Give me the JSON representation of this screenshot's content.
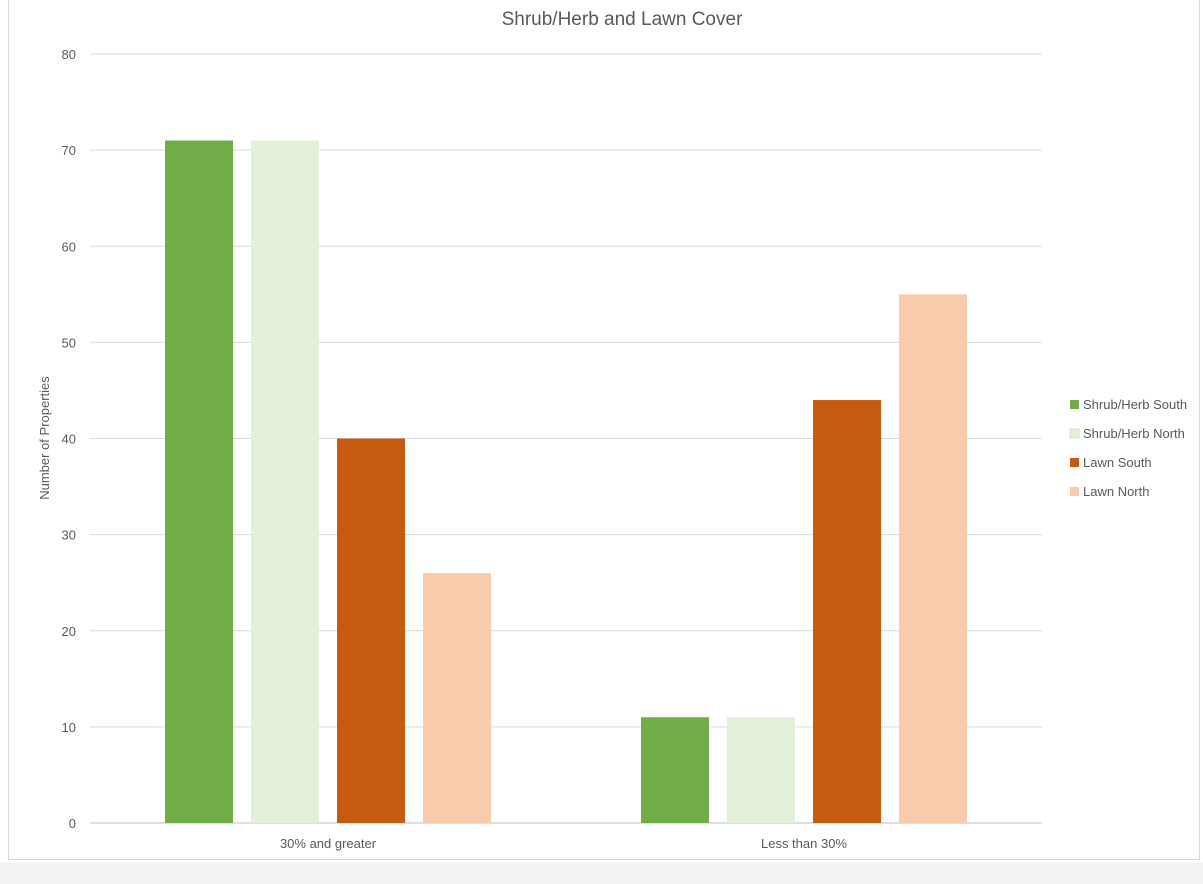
{
  "chart_data": {
    "type": "bar",
    "title": "Shrub/Herb and Lawn Cover",
    "xlabel": "",
    "ylabel": "Number  of Properties",
    "categories": [
      "30% and greater",
      "Less than 30%"
    ],
    "series": [
      {
        "name": "Shrub/Herb South",
        "color": "#70ad47",
        "values": [
          71,
          11
        ]
      },
      {
        "name": "Shrub/Herb North",
        "color": "#e2efd9",
        "values": [
          71,
          11
        ]
      },
      {
        "name": "Lawn South",
        "color": "#c55a11",
        "values": [
          40,
          44
        ]
      },
      {
        "name": "Lawn North",
        "color": "#f8cbad",
        "values": [
          26,
          55
        ]
      }
    ],
    "ylim": [
      0,
      80
    ],
    "yticks": [
      0,
      10,
      20,
      30,
      40,
      50,
      60,
      70,
      80
    ],
    "grid": true,
    "legend_position": "right"
  }
}
